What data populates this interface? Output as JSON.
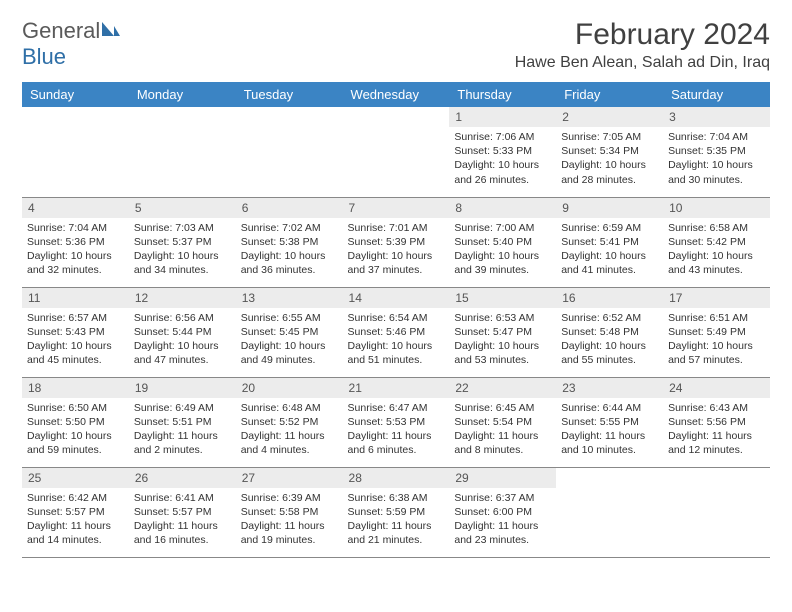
{
  "brand": {
    "general": "General",
    "blue": "Blue"
  },
  "title": "February 2024",
  "location": "Hawe Ben Alean, Salah ad Din, Iraq",
  "colors": {
    "header_bg": "#3b84c4",
    "header_text": "#ffffff",
    "daynum_bg": "#ececec",
    "text": "#333333",
    "brand_gray": "#5a5a5a",
    "brand_blue": "#2f6fa7"
  },
  "weekdays": [
    "Sunday",
    "Monday",
    "Tuesday",
    "Wednesday",
    "Thursday",
    "Friday",
    "Saturday"
  ],
  "weeks": [
    [
      null,
      null,
      null,
      null,
      {
        "n": "1",
        "sr": "Sunrise: 7:06 AM",
        "ss": "Sunset: 5:33 PM",
        "d1": "Daylight: 10 hours",
        "d2": "and 26 minutes."
      },
      {
        "n": "2",
        "sr": "Sunrise: 7:05 AM",
        "ss": "Sunset: 5:34 PM",
        "d1": "Daylight: 10 hours",
        "d2": "and 28 minutes."
      },
      {
        "n": "3",
        "sr": "Sunrise: 7:04 AM",
        "ss": "Sunset: 5:35 PM",
        "d1": "Daylight: 10 hours",
        "d2": "and 30 minutes."
      }
    ],
    [
      {
        "n": "4",
        "sr": "Sunrise: 7:04 AM",
        "ss": "Sunset: 5:36 PM",
        "d1": "Daylight: 10 hours",
        "d2": "and 32 minutes."
      },
      {
        "n": "5",
        "sr": "Sunrise: 7:03 AM",
        "ss": "Sunset: 5:37 PM",
        "d1": "Daylight: 10 hours",
        "d2": "and 34 minutes."
      },
      {
        "n": "6",
        "sr": "Sunrise: 7:02 AM",
        "ss": "Sunset: 5:38 PM",
        "d1": "Daylight: 10 hours",
        "d2": "and 36 minutes."
      },
      {
        "n": "7",
        "sr": "Sunrise: 7:01 AM",
        "ss": "Sunset: 5:39 PM",
        "d1": "Daylight: 10 hours",
        "d2": "and 37 minutes."
      },
      {
        "n": "8",
        "sr": "Sunrise: 7:00 AM",
        "ss": "Sunset: 5:40 PM",
        "d1": "Daylight: 10 hours",
        "d2": "and 39 minutes."
      },
      {
        "n": "9",
        "sr": "Sunrise: 6:59 AM",
        "ss": "Sunset: 5:41 PM",
        "d1": "Daylight: 10 hours",
        "d2": "and 41 minutes."
      },
      {
        "n": "10",
        "sr": "Sunrise: 6:58 AM",
        "ss": "Sunset: 5:42 PM",
        "d1": "Daylight: 10 hours",
        "d2": "and 43 minutes."
      }
    ],
    [
      {
        "n": "11",
        "sr": "Sunrise: 6:57 AM",
        "ss": "Sunset: 5:43 PM",
        "d1": "Daylight: 10 hours",
        "d2": "and 45 minutes."
      },
      {
        "n": "12",
        "sr": "Sunrise: 6:56 AM",
        "ss": "Sunset: 5:44 PM",
        "d1": "Daylight: 10 hours",
        "d2": "and 47 minutes."
      },
      {
        "n": "13",
        "sr": "Sunrise: 6:55 AM",
        "ss": "Sunset: 5:45 PM",
        "d1": "Daylight: 10 hours",
        "d2": "and 49 minutes."
      },
      {
        "n": "14",
        "sr": "Sunrise: 6:54 AM",
        "ss": "Sunset: 5:46 PM",
        "d1": "Daylight: 10 hours",
        "d2": "and 51 minutes."
      },
      {
        "n": "15",
        "sr": "Sunrise: 6:53 AM",
        "ss": "Sunset: 5:47 PM",
        "d1": "Daylight: 10 hours",
        "d2": "and 53 minutes."
      },
      {
        "n": "16",
        "sr": "Sunrise: 6:52 AM",
        "ss": "Sunset: 5:48 PM",
        "d1": "Daylight: 10 hours",
        "d2": "and 55 minutes."
      },
      {
        "n": "17",
        "sr": "Sunrise: 6:51 AM",
        "ss": "Sunset: 5:49 PM",
        "d1": "Daylight: 10 hours",
        "d2": "and 57 minutes."
      }
    ],
    [
      {
        "n": "18",
        "sr": "Sunrise: 6:50 AM",
        "ss": "Sunset: 5:50 PM",
        "d1": "Daylight: 10 hours",
        "d2": "and 59 minutes."
      },
      {
        "n": "19",
        "sr": "Sunrise: 6:49 AM",
        "ss": "Sunset: 5:51 PM",
        "d1": "Daylight: 11 hours",
        "d2": "and 2 minutes."
      },
      {
        "n": "20",
        "sr": "Sunrise: 6:48 AM",
        "ss": "Sunset: 5:52 PM",
        "d1": "Daylight: 11 hours",
        "d2": "and 4 minutes."
      },
      {
        "n": "21",
        "sr": "Sunrise: 6:47 AM",
        "ss": "Sunset: 5:53 PM",
        "d1": "Daylight: 11 hours",
        "d2": "and 6 minutes."
      },
      {
        "n": "22",
        "sr": "Sunrise: 6:45 AM",
        "ss": "Sunset: 5:54 PM",
        "d1": "Daylight: 11 hours",
        "d2": "and 8 minutes."
      },
      {
        "n": "23",
        "sr": "Sunrise: 6:44 AM",
        "ss": "Sunset: 5:55 PM",
        "d1": "Daylight: 11 hours",
        "d2": "and 10 minutes."
      },
      {
        "n": "24",
        "sr": "Sunrise: 6:43 AM",
        "ss": "Sunset: 5:56 PM",
        "d1": "Daylight: 11 hours",
        "d2": "and 12 minutes."
      }
    ],
    [
      {
        "n": "25",
        "sr": "Sunrise: 6:42 AM",
        "ss": "Sunset: 5:57 PM",
        "d1": "Daylight: 11 hours",
        "d2": "and 14 minutes."
      },
      {
        "n": "26",
        "sr": "Sunrise: 6:41 AM",
        "ss": "Sunset: 5:57 PM",
        "d1": "Daylight: 11 hours",
        "d2": "and 16 minutes."
      },
      {
        "n": "27",
        "sr": "Sunrise: 6:39 AM",
        "ss": "Sunset: 5:58 PM",
        "d1": "Daylight: 11 hours",
        "d2": "and 19 minutes."
      },
      {
        "n": "28",
        "sr": "Sunrise: 6:38 AM",
        "ss": "Sunset: 5:59 PM",
        "d1": "Daylight: 11 hours",
        "d2": "and 21 minutes."
      },
      {
        "n": "29",
        "sr": "Sunrise: 6:37 AM",
        "ss": "Sunset: 6:00 PM",
        "d1": "Daylight: 11 hours",
        "d2": "and 23 minutes."
      },
      null,
      null
    ]
  ]
}
